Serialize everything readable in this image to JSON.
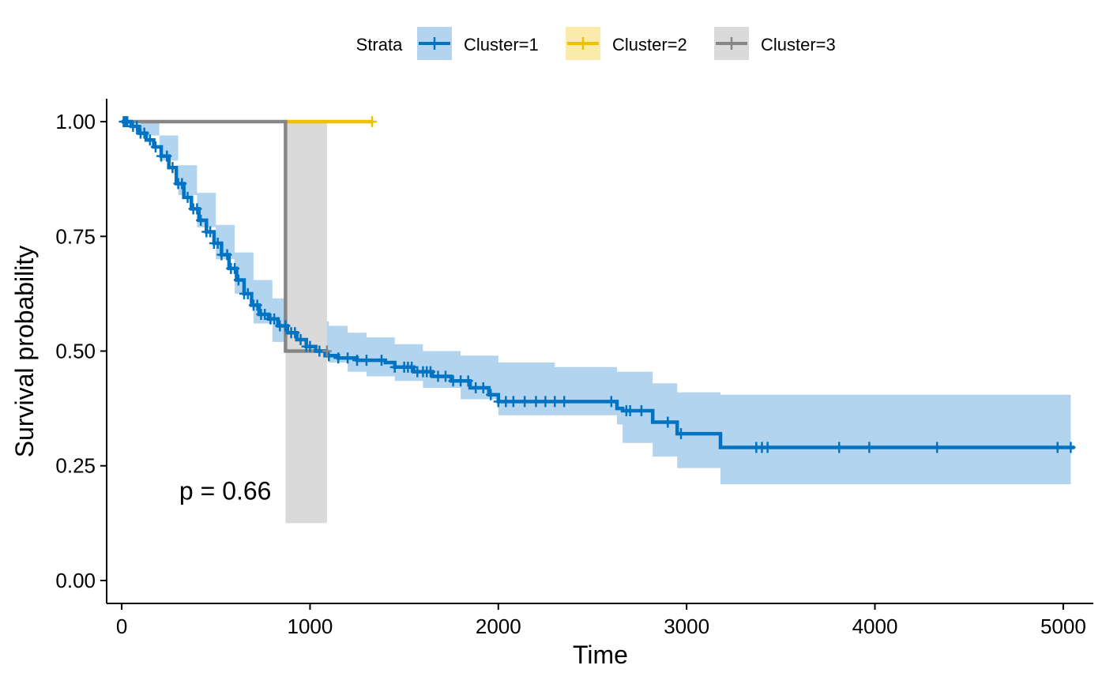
{
  "chart_data": {
    "type": "line",
    "subtype": "kaplan-meier",
    "xlabel": "Time",
    "ylabel": "Survival probability",
    "xlim": [
      -80,
      5160
    ],
    "ylim": [
      -0.05,
      1.05
    ],
    "xticks": [
      0,
      1000,
      2000,
      3000,
      4000,
      5000
    ],
    "yticks": [
      0.0,
      0.25,
      0.5,
      0.75,
      1.0
    ],
    "ytick_labels": [
      "0.00",
      "0.25",
      "0.50",
      "0.75",
      "1.00"
    ],
    "legend": {
      "title": "Strata",
      "position": "top",
      "entries": [
        "Cluster=1",
        "Cluster=2",
        "Cluster=3"
      ]
    },
    "annotation": {
      "text": "p = 0.66",
      "x": 550,
      "y": 0.195
    },
    "grid": false,
    "series": [
      {
        "name": "Cluster=1",
        "color": "#0073C2",
        "ci_color": "#B3D4EE",
        "steps": [
          [
            0,
            1.0
          ],
          [
            50,
            0.99
          ],
          [
            90,
            0.975
          ],
          [
            130,
            0.96
          ],
          [
            170,
            0.945
          ],
          [
            210,
            0.925
          ],
          [
            250,
            0.9
          ],
          [
            290,
            0.865
          ],
          [
            330,
            0.835
          ],
          [
            370,
            0.81
          ],
          [
            410,
            0.785
          ],
          [
            450,
            0.76
          ],
          [
            490,
            0.735
          ],
          [
            530,
            0.71
          ],
          [
            570,
            0.68
          ],
          [
            610,
            0.655
          ],
          [
            650,
            0.625
          ],
          [
            690,
            0.6
          ],
          [
            730,
            0.58
          ],
          [
            780,
            0.57
          ],
          [
            830,
            0.555
          ],
          [
            880,
            0.54
          ],
          [
            930,
            0.525
          ],
          [
            980,
            0.51
          ],
          [
            1030,
            0.5
          ],
          [
            1080,
            0.49
          ],
          [
            1150,
            0.485
          ],
          [
            1250,
            0.48
          ],
          [
            1400,
            0.475
          ],
          [
            1450,
            0.465
          ],
          [
            1550,
            0.455
          ],
          [
            1650,
            0.445
          ],
          [
            1750,
            0.435
          ],
          [
            1850,
            0.42
          ],
          [
            1950,
            0.405
          ],
          [
            2000,
            0.39
          ],
          [
            2630,
            0.375
          ],
          [
            2660,
            0.37
          ],
          [
            2820,
            0.345
          ],
          [
            2950,
            0.32
          ],
          [
            3180,
            0.29
          ],
          [
            5060,
            0.29
          ]
        ],
        "ci_lower": [
          [
            0,
            1.0
          ],
          [
            100,
            0.97
          ],
          [
            200,
            0.915
          ],
          [
            300,
            0.84
          ],
          [
            400,
            0.77
          ],
          [
            500,
            0.7
          ],
          [
            600,
            0.625
          ],
          [
            700,
            0.56
          ],
          [
            800,
            0.52
          ],
          [
            900,
            0.5
          ],
          [
            1000,
            0.485
          ],
          [
            1100,
            0.475
          ],
          [
            1200,
            0.455
          ],
          [
            1300,
            0.445
          ],
          [
            1450,
            0.435
          ],
          [
            1600,
            0.42
          ],
          [
            1800,
            0.395
          ],
          [
            2000,
            0.36
          ],
          [
            2300,
            0.36
          ],
          [
            2630,
            0.34
          ],
          [
            2660,
            0.3
          ],
          [
            2820,
            0.27
          ],
          [
            2950,
            0.245
          ],
          [
            3180,
            0.21
          ],
          [
            5040,
            0.21
          ]
        ],
        "ci_upper": [
          [
            0,
            1.0
          ],
          [
            100,
            1.0
          ],
          [
            200,
            0.97
          ],
          [
            300,
            0.905
          ],
          [
            400,
            0.845
          ],
          [
            500,
            0.775
          ],
          [
            600,
            0.715
          ],
          [
            700,
            0.655
          ],
          [
            800,
            0.615
          ],
          [
            900,
            0.6
          ],
          [
            1000,
            0.565
          ],
          [
            1100,
            0.555
          ],
          [
            1200,
            0.54
          ],
          [
            1300,
            0.53
          ],
          [
            1450,
            0.515
          ],
          [
            1600,
            0.5
          ],
          [
            1800,
            0.49
          ],
          [
            2000,
            0.475
          ],
          [
            2300,
            0.465
          ],
          [
            2630,
            0.455
          ],
          [
            2660,
            0.455
          ],
          [
            2820,
            0.43
          ],
          [
            2950,
            0.41
          ],
          [
            3180,
            0.405
          ],
          [
            5040,
            0.405
          ]
        ],
        "censor_times": [
          10,
          20,
          30,
          60,
          80,
          100,
          120,
          150,
          180,
          210,
          240,
          270,
          300,
          320,
          350,
          380,
          400,
          420,
          450,
          470,
          490,
          510,
          530,
          560,
          580,
          600,
          620,
          650,
          670,
          700,
          720,
          740,
          760,
          790,
          810,
          840,
          870,
          900,
          920,
          950,
          980,
          1000,
          1050,
          1100,
          1150,
          1200,
          1250,
          1300,
          1380,
          1450,
          1500,
          1520,
          1540,
          1570,
          1600,
          1620,
          1640,
          1680,
          1720,
          1760,
          1800,
          1840,
          1880,
          1920,
          1960,
          2000,
          2040,
          2080,
          2140,
          2200,
          2250,
          2300,
          2350,
          2600,
          2680,
          2700,
          2760,
          2900,
          2970,
          3370,
          3400,
          3430,
          3810,
          3970,
          4330,
          4970,
          5040
        ]
      },
      {
        "name": "Cluster=2",
        "color": "#EFC000",
        "ci_color": "#FBEBAA",
        "steps": [
          [
            870,
            1.0
          ],
          [
            1330,
            1.0
          ]
        ],
        "censor_times": [
          1330
        ]
      },
      {
        "name": "Cluster=3",
        "color": "#868686",
        "ci_color": "#DADADA",
        "steps": [
          [
            0,
            1.0
          ],
          [
            870,
            0.5
          ],
          [
            1090,
            0.5
          ]
        ],
        "ci_lower": [
          [
            870,
            0.125
          ],
          [
            1090,
            0.125
          ]
        ],
        "ci_upper": [
          [
            870,
            1.0
          ],
          [
            1090,
            1.0
          ]
        ],
        "censor_times": [
          1090
        ]
      }
    ]
  }
}
